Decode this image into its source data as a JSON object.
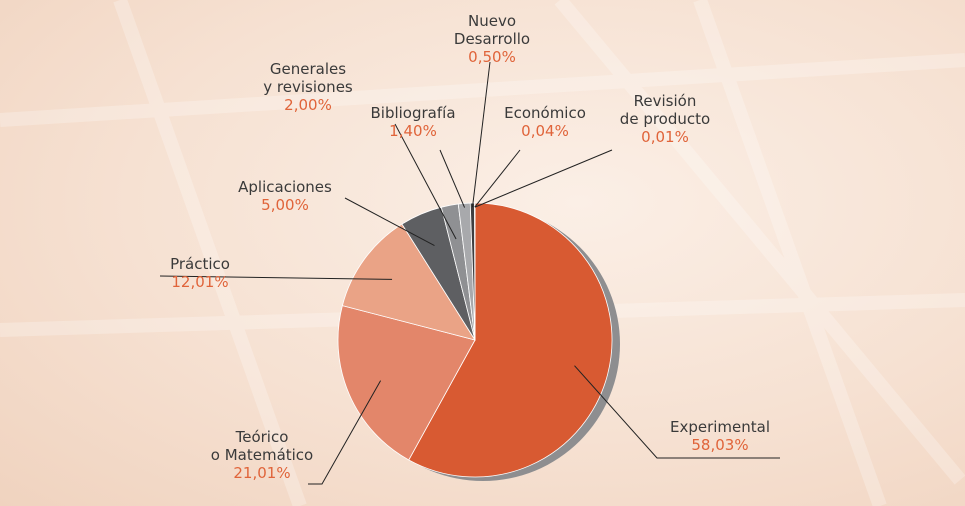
{
  "chart_data": {
    "type": "pie",
    "categories": [
      "Experimental",
      "Teórico\no Matemático",
      "Práctico",
      "Aplicaciones",
      "Generales\ny revisiones",
      "Bibliografía",
      "Nuevo\nDesarrollo",
      "Económico",
      "Revisión\nde producto"
    ],
    "values": [
      58.03,
      21.01,
      12.01,
      5.0,
      2.0,
      1.4,
      0.5,
      0.04,
      0.01
    ],
    "value_labels": [
      "58,03%",
      "21,01%",
      "12,01%",
      "5,00%",
      "2,00%",
      "1,40%",
      "0,50%",
      "0,04%",
      "0,01%"
    ],
    "colors": [
      "#d85a32",
      "#e3866a",
      "#eaa386",
      "#5e5f62",
      "#8f9093",
      "#a8a9ac",
      "#3e3e40",
      "#7a7a7c",
      "#d4d5d7"
    ]
  }
}
